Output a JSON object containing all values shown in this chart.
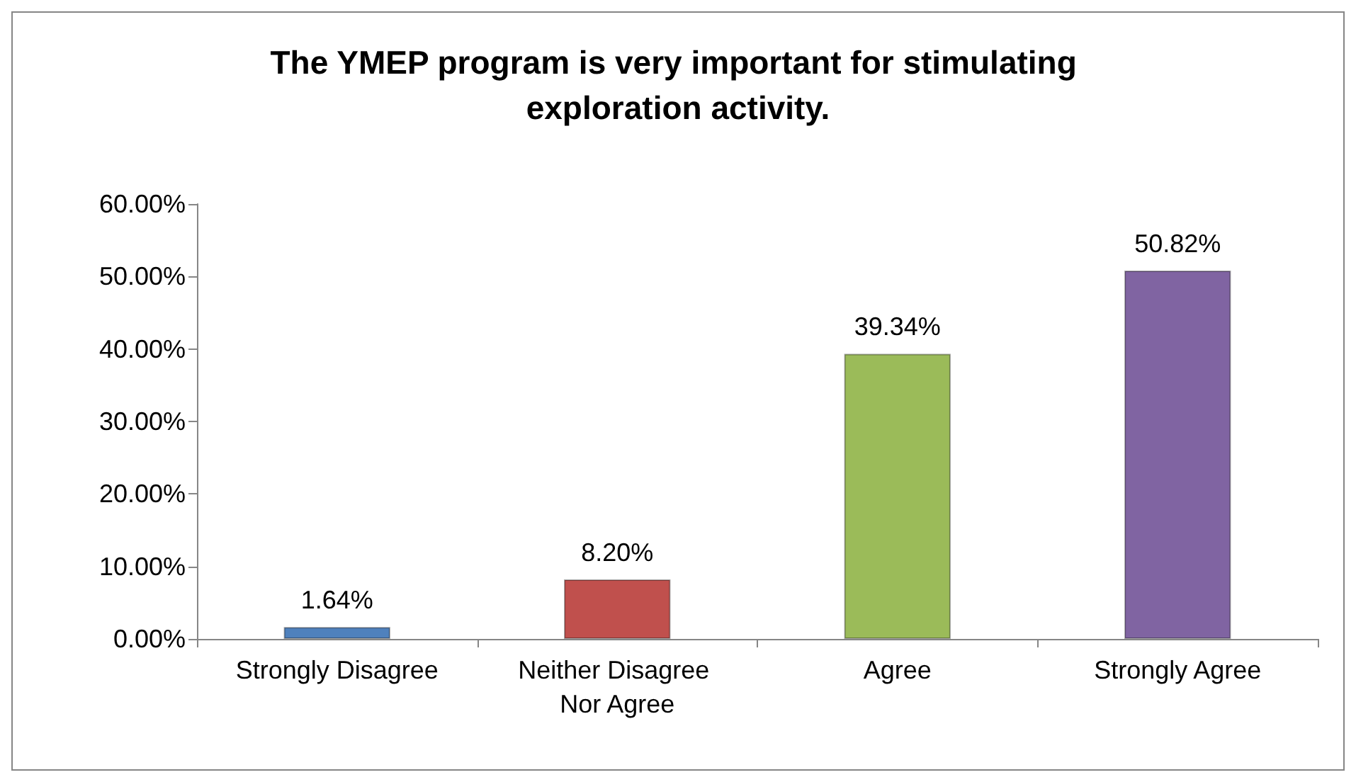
{
  "chart_data": {
    "type": "bar",
    "title": "The YMEP program is very important for stimulating exploration activity.",
    "categories": [
      "Strongly Disagree",
      "Neither Disagree Nor Agree",
      "Agree",
      "Strongly Agree"
    ],
    "values": [
      1.64,
      8.2,
      39.34,
      50.82
    ],
    "colors": [
      "#4f81bd",
      "#c0504d",
      "#9bbb59",
      "#8064a2"
    ],
    "value_labels": [
      "1.64%",
      "8.20%",
      "39.34%",
      "50.82%"
    ],
    "ylim": [
      0,
      60
    ],
    "yticks": [
      {
        "value": 0,
        "label": "0.00%"
      },
      {
        "value": 10,
        "label": "10.00%"
      },
      {
        "value": 20,
        "label": "20.00%"
      },
      {
        "value": 30,
        "label": "30.00%"
      },
      {
        "value": 40,
        "label": "40.00%"
      },
      {
        "value": 50,
        "label": "50.00%"
      },
      {
        "value": 60,
        "label": "60.00%"
      }
    ],
    "grid": false
  }
}
